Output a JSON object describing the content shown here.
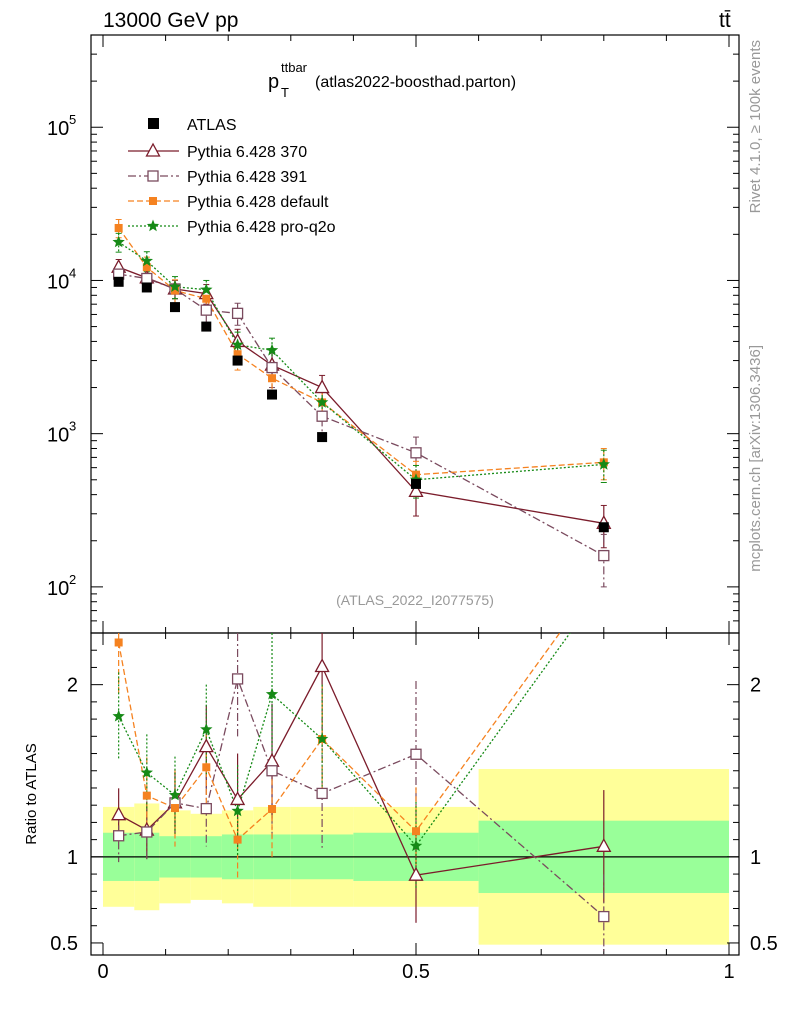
{
  "header": {
    "left": "13000 GeV pp",
    "right": "tt̄"
  },
  "chart_data": {
    "type": "scatter",
    "title_main": "p",
    "title_sub": "T",
    "title_sup": "ttbar",
    "title_rest": " (atlas2022-boosthad.parton)",
    "watermark": "(ATLAS_2022_I2077575)",
    "side_label_top": "Rivet 4.1.0, ≥ 100k events",
    "side_label_bottom": "mcplots.cern.ch [arXiv:1306.3436]",
    "ratio_ylabel": "Ratio to ATLAS",
    "xlim": [
      0,
      1
    ],
    "ylim_main": [
      50,
      400000
    ],
    "ylim_ratio": [
      0.43,
      2.3
    ],
    "x_ticks": [
      0,
      0.5,
      1
    ],
    "x_tick_labels": [
      "0",
      "0.5",
      "1"
    ],
    "y_ticks_main": [
      {
        "value": 100,
        "base": "10",
        "exp": "2"
      },
      {
        "value": 1000,
        "base": "10",
        "exp": "3"
      },
      {
        "value": 10000,
        "base": "10",
        "exp": "4"
      },
      {
        "value": 100000,
        "base": "10",
        "exp": "5"
      }
    ],
    "y_ticks_ratio": [
      {
        "value": 0.5,
        "label": "0.5"
      },
      {
        "value": 1,
        "label": "1"
      },
      {
        "value": 2,
        "label": "2"
      }
    ],
    "bins": [
      {
        "lo": 0.0,
        "hi": 0.05
      },
      {
        "lo": 0.05,
        "hi": 0.09
      },
      {
        "lo": 0.09,
        "hi": 0.14
      },
      {
        "lo": 0.14,
        "hi": 0.19
      },
      {
        "lo": 0.19,
        "hi": 0.24
      },
      {
        "lo": 0.24,
        "hi": 0.3
      },
      {
        "lo": 0.3,
        "hi": 0.4
      },
      {
        "lo": 0.4,
        "hi": 0.6
      },
      {
        "lo": 0.6,
        "hi": 1.0
      }
    ],
    "x": [
      0.025,
      0.07,
      0.115,
      0.165,
      0.215,
      0.27,
      0.35,
      0.5,
      0.8
    ],
    "data_series": {
      "name": "ATLAS",
      "values": [
        9800,
        9000,
        6700,
        5000,
        3000,
        1800,
        950,
        470,
        245
      ]
    },
    "band_green_half": [
      0.14,
      0.14,
      0.12,
      0.12,
      0.13,
      0.13,
      0.13,
      0.14,
      0.21
    ],
    "band_yellow_half": [
      0.29,
      0.31,
      0.27,
      0.25,
      0.27,
      0.29,
      0.29,
      0.29,
      0.51
    ],
    "series": [
      {
        "name": "Pythia 6.428 370",
        "color": "#7b1c2b",
        "marker": "triangle-open",
        "line": "solid",
        "values": [
          12200,
          10400,
          8800,
          8200,
          4000,
          2800,
          2000,
          420,
          260
        ],
        "errors": [
          1500,
          1500,
          1200,
          1200,
          800,
          600,
          400,
          130,
          80
        ]
      },
      {
        "name": "Pythia 6.428 391",
        "color": "#7a4a5e",
        "marker": "square-open",
        "line": "dashdot",
        "values": [
          11000,
          10300,
          8800,
          6400,
          6100,
          2700,
          1300,
          750,
          160
        ],
        "errors": [
          1500,
          1500,
          1200,
          1100,
          1000,
          700,
          300,
          200,
          60
        ]
      },
      {
        "name": "Pythia 6.428 default",
        "color": "#f58220",
        "marker": "square-filled",
        "line": "dashdash",
        "values": [
          22000,
          12200,
          8600,
          7600,
          3300,
          2300,
          1600,
          540,
          650
        ],
        "errors": [
          3000,
          2000,
          1500,
          1200,
          700,
          500,
          300,
          120,
          150
        ]
      },
      {
        "name": "Pythia 6.428 pro-q2o",
        "color": "#168a16",
        "marker": "star",
        "line": "dotted",
        "values": [
          17800,
          13400,
          9100,
          8700,
          3800,
          3500,
          1600,
          500,
          630
        ],
        "errors": [
          2500,
          2000,
          1500,
          1300,
          800,
          700,
          300,
          120,
          150
        ]
      }
    ]
  }
}
